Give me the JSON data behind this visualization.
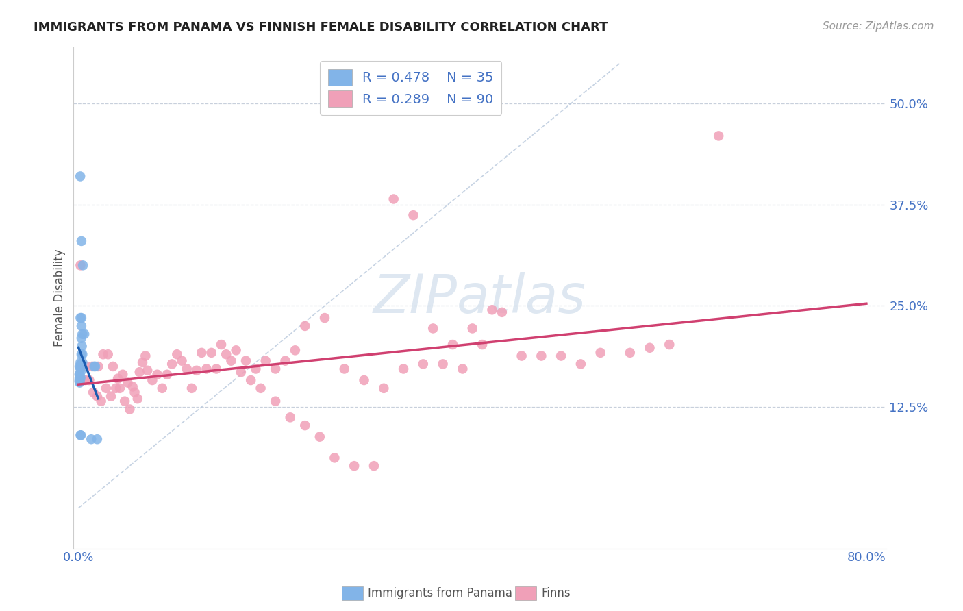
{
  "title": "IMMIGRANTS FROM PANAMA VS FINNISH FEMALE DISABILITY CORRELATION CHART",
  "source": "Source: ZipAtlas.com",
  "tick_color": "#4472c4",
  "ylabel": "Female Disability",
  "xlim": [
    -0.005,
    0.82
  ],
  "ylim": [
    -0.05,
    0.57
  ],
  "xtick_positions": [
    0.0,
    0.2,
    0.4,
    0.6,
    0.8
  ],
  "xticklabels": [
    "0.0%",
    "",
    "",
    "",
    "80.0%"
  ],
  "ytick_positions": [
    0.125,
    0.25,
    0.375,
    0.5
  ],
  "ytick_labels": [
    "12.5%",
    "25.0%",
    "37.5%",
    "50.0%"
  ],
  "color_panama": "#82b4e8",
  "color_finns": "#f0a0b8",
  "trendline_panama_color": "#1a5cb0",
  "trendline_finns_color": "#d04070",
  "diagonal_color": "#b8c8dc",
  "watermark_color": "#c8d8e8",
  "grid_color": "#c8d0dc",
  "panama_x": [
    0.0018,
    0.0045,
    0.002,
    0.003,
    0.003,
    0.003,
    0.0035,
    0.004,
    0.004,
    0.003,
    0.003,
    0.002,
    0.004,
    0.003,
    0.002,
    0.003,
    0.001,
    0.002,
    0.001,
    0.001,
    0.002,
    0.001,
    0.001,
    0.002,
    0.016,
    0.017,
    0.013,
    0.019,
    0.0025,
    0.002,
    0.006,
    0.003,
    0.001,
    0.0012,
    0.001
  ],
  "panama_y": [
    0.41,
    0.3,
    0.235,
    0.225,
    0.235,
    0.21,
    0.2,
    0.215,
    0.19,
    0.33,
    0.19,
    0.18,
    0.18,
    0.178,
    0.172,
    0.17,
    0.165,
    0.162,
    0.158,
    0.156,
    0.16,
    0.16,
    0.175,
    0.175,
    0.175,
    0.175,
    0.085,
    0.085,
    0.09,
    0.09,
    0.215,
    0.175,
    0.157,
    0.155,
    0.165
  ],
  "finns_x": [
    0.002,
    0.008,
    0.014,
    0.02,
    0.025,
    0.03,
    0.035,
    0.04,
    0.045,
    0.05,
    0.055,
    0.06,
    0.065,
    0.07,
    0.08,
    0.09,
    0.1,
    0.11,
    0.12,
    0.13,
    0.14,
    0.15,
    0.16,
    0.17,
    0.18,
    0.19,
    0.2,
    0.21,
    0.22,
    0.23,
    0.25,
    0.27,
    0.29,
    0.31,
    0.33,
    0.35,
    0.37,
    0.39,
    0.41,
    0.43,
    0.45,
    0.47,
    0.49,
    0.51,
    0.53,
    0.56,
    0.58,
    0.6,
    0.65,
    0.003,
    0.007,
    0.011,
    0.015,
    0.019,
    0.023,
    0.028,
    0.033,
    0.038,
    0.042,
    0.047,
    0.052,
    0.057,
    0.062,
    0.068,
    0.075,
    0.085,
    0.095,
    0.105,
    0.115,
    0.125,
    0.135,
    0.145,
    0.155,
    0.165,
    0.175,
    0.185,
    0.2,
    0.215,
    0.23,
    0.245,
    0.26,
    0.28,
    0.3,
    0.32,
    0.34,
    0.36,
    0.38,
    0.4,
    0.42
  ],
  "finns_y": [
    0.3,
    0.175,
    0.175,
    0.175,
    0.19,
    0.19,
    0.175,
    0.16,
    0.165,
    0.155,
    0.15,
    0.135,
    0.18,
    0.17,
    0.165,
    0.165,
    0.19,
    0.172,
    0.17,
    0.172,
    0.172,
    0.19,
    0.195,
    0.182,
    0.172,
    0.182,
    0.172,
    0.182,
    0.195,
    0.225,
    0.235,
    0.172,
    0.158,
    0.148,
    0.172,
    0.178,
    0.178,
    0.172,
    0.202,
    0.242,
    0.188,
    0.188,
    0.188,
    0.178,
    0.192,
    0.192,
    0.198,
    0.202,
    0.46,
    0.158,
    0.158,
    0.158,
    0.143,
    0.138,
    0.132,
    0.148,
    0.138,
    0.148,
    0.148,
    0.132,
    0.122,
    0.143,
    0.168,
    0.188,
    0.158,
    0.148,
    0.178,
    0.182,
    0.148,
    0.192,
    0.192,
    0.202,
    0.182,
    0.168,
    0.158,
    0.148,
    0.132,
    0.112,
    0.102,
    0.088,
    0.062,
    0.052,
    0.052,
    0.382,
    0.362,
    0.222,
    0.202,
    0.222,
    0.245
  ]
}
